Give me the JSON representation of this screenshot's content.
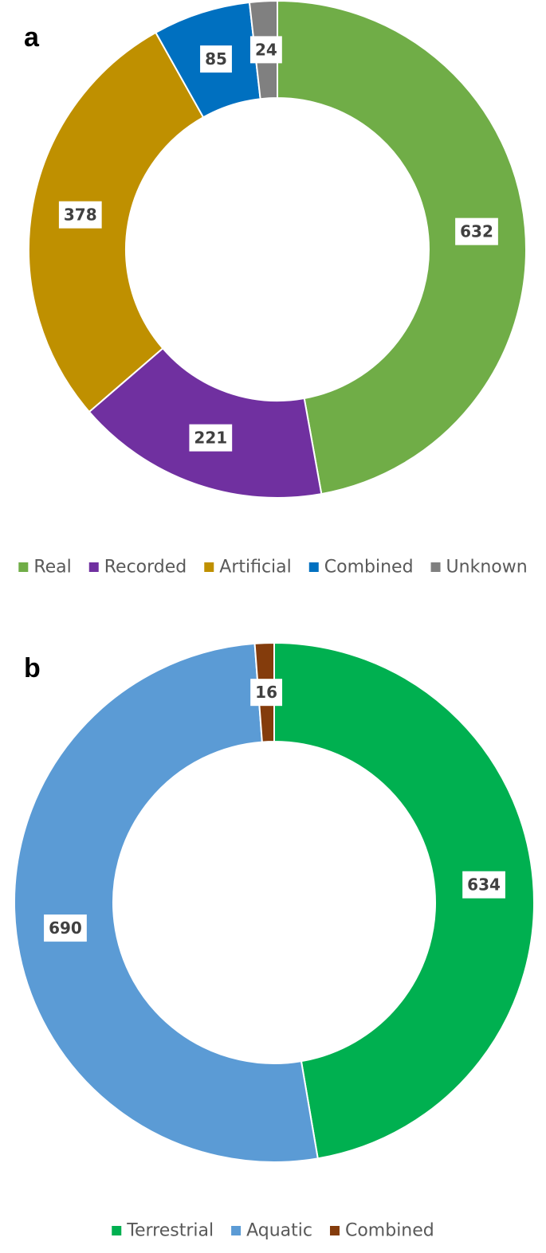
{
  "chart_data": [
    {
      "type": "pie",
      "label": "a",
      "categories": [
        "Real",
        "Recorded",
        "Artificial",
        "Combined",
        "Unknown"
      ],
      "values": [
        632,
        221,
        378,
        85,
        24
      ],
      "colors": [
        "#70ad47",
        "#7030a0",
        "#bf9000",
        "#0070c0",
        "#808080"
      ]
    },
    {
      "type": "pie",
      "label": "b",
      "categories": [
        "Terrestrial",
        "Aquatic",
        "Combined"
      ],
      "values": [
        634,
        690,
        16
      ],
      "colors": [
        "#00b050",
        "#5b9bd5",
        "#843c0c"
      ]
    }
  ]
}
